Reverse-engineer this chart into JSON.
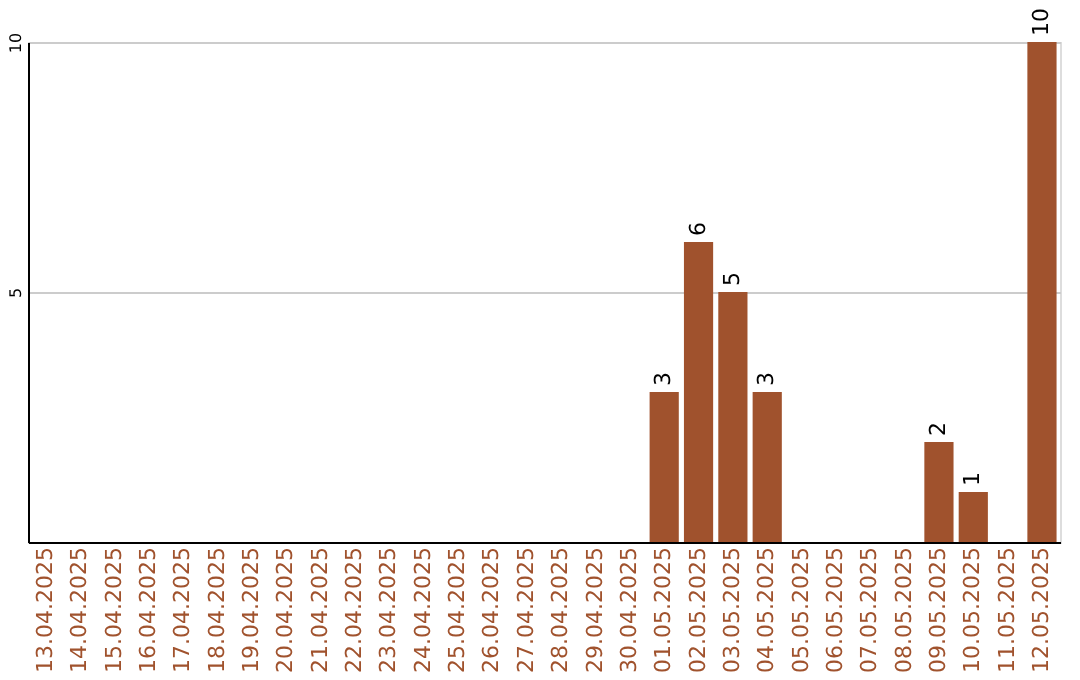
{
  "chart_data": {
    "type": "bar",
    "categories": [
      "13.04.2025",
      "14.04.2025",
      "15.04.2025",
      "16.04.2025",
      "17.04.2025",
      "18.04.2025",
      "19.04.2025",
      "20.04.2025",
      "21.04.2025",
      "22.04.2025",
      "23.04.2025",
      "24.04.2025",
      "25.04.2025",
      "26.04.2025",
      "27.04.2025",
      "28.04.2025",
      "29.04.2025",
      "30.04.2025",
      "01.05.2025",
      "02.05.2025",
      "03.05.2025",
      "04.05.2025",
      "05.05.2025",
      "06.05.2025",
      "07.05.2025",
      "08.05.2025",
      "09.05.2025",
      "10.05.2025",
      "11.05.2025",
      "12.05.2025"
    ],
    "values": [
      0,
      0,
      0,
      0,
      0,
      0,
      0,
      0,
      0,
      0,
      0,
      0,
      0,
      0,
      0,
      0,
      0,
      0,
      3,
      6,
      5,
      3,
      0,
      0,
      0,
      0,
      2,
      1,
      0,
      10
    ],
    "value_labels": [
      null,
      null,
      null,
      null,
      null,
      null,
      null,
      null,
      null,
      null,
      null,
      null,
      null,
      null,
      null,
      null,
      null,
      null,
      "3",
      "6",
      "5",
      "3",
      null,
      null,
      null,
      null,
      "2",
      "1",
      null,
      "10"
    ],
    "color": "#a0522d",
    "ylim": [
      0,
      10
    ],
    "yticks": [
      5,
      10
    ],
    "grid": "y"
  }
}
